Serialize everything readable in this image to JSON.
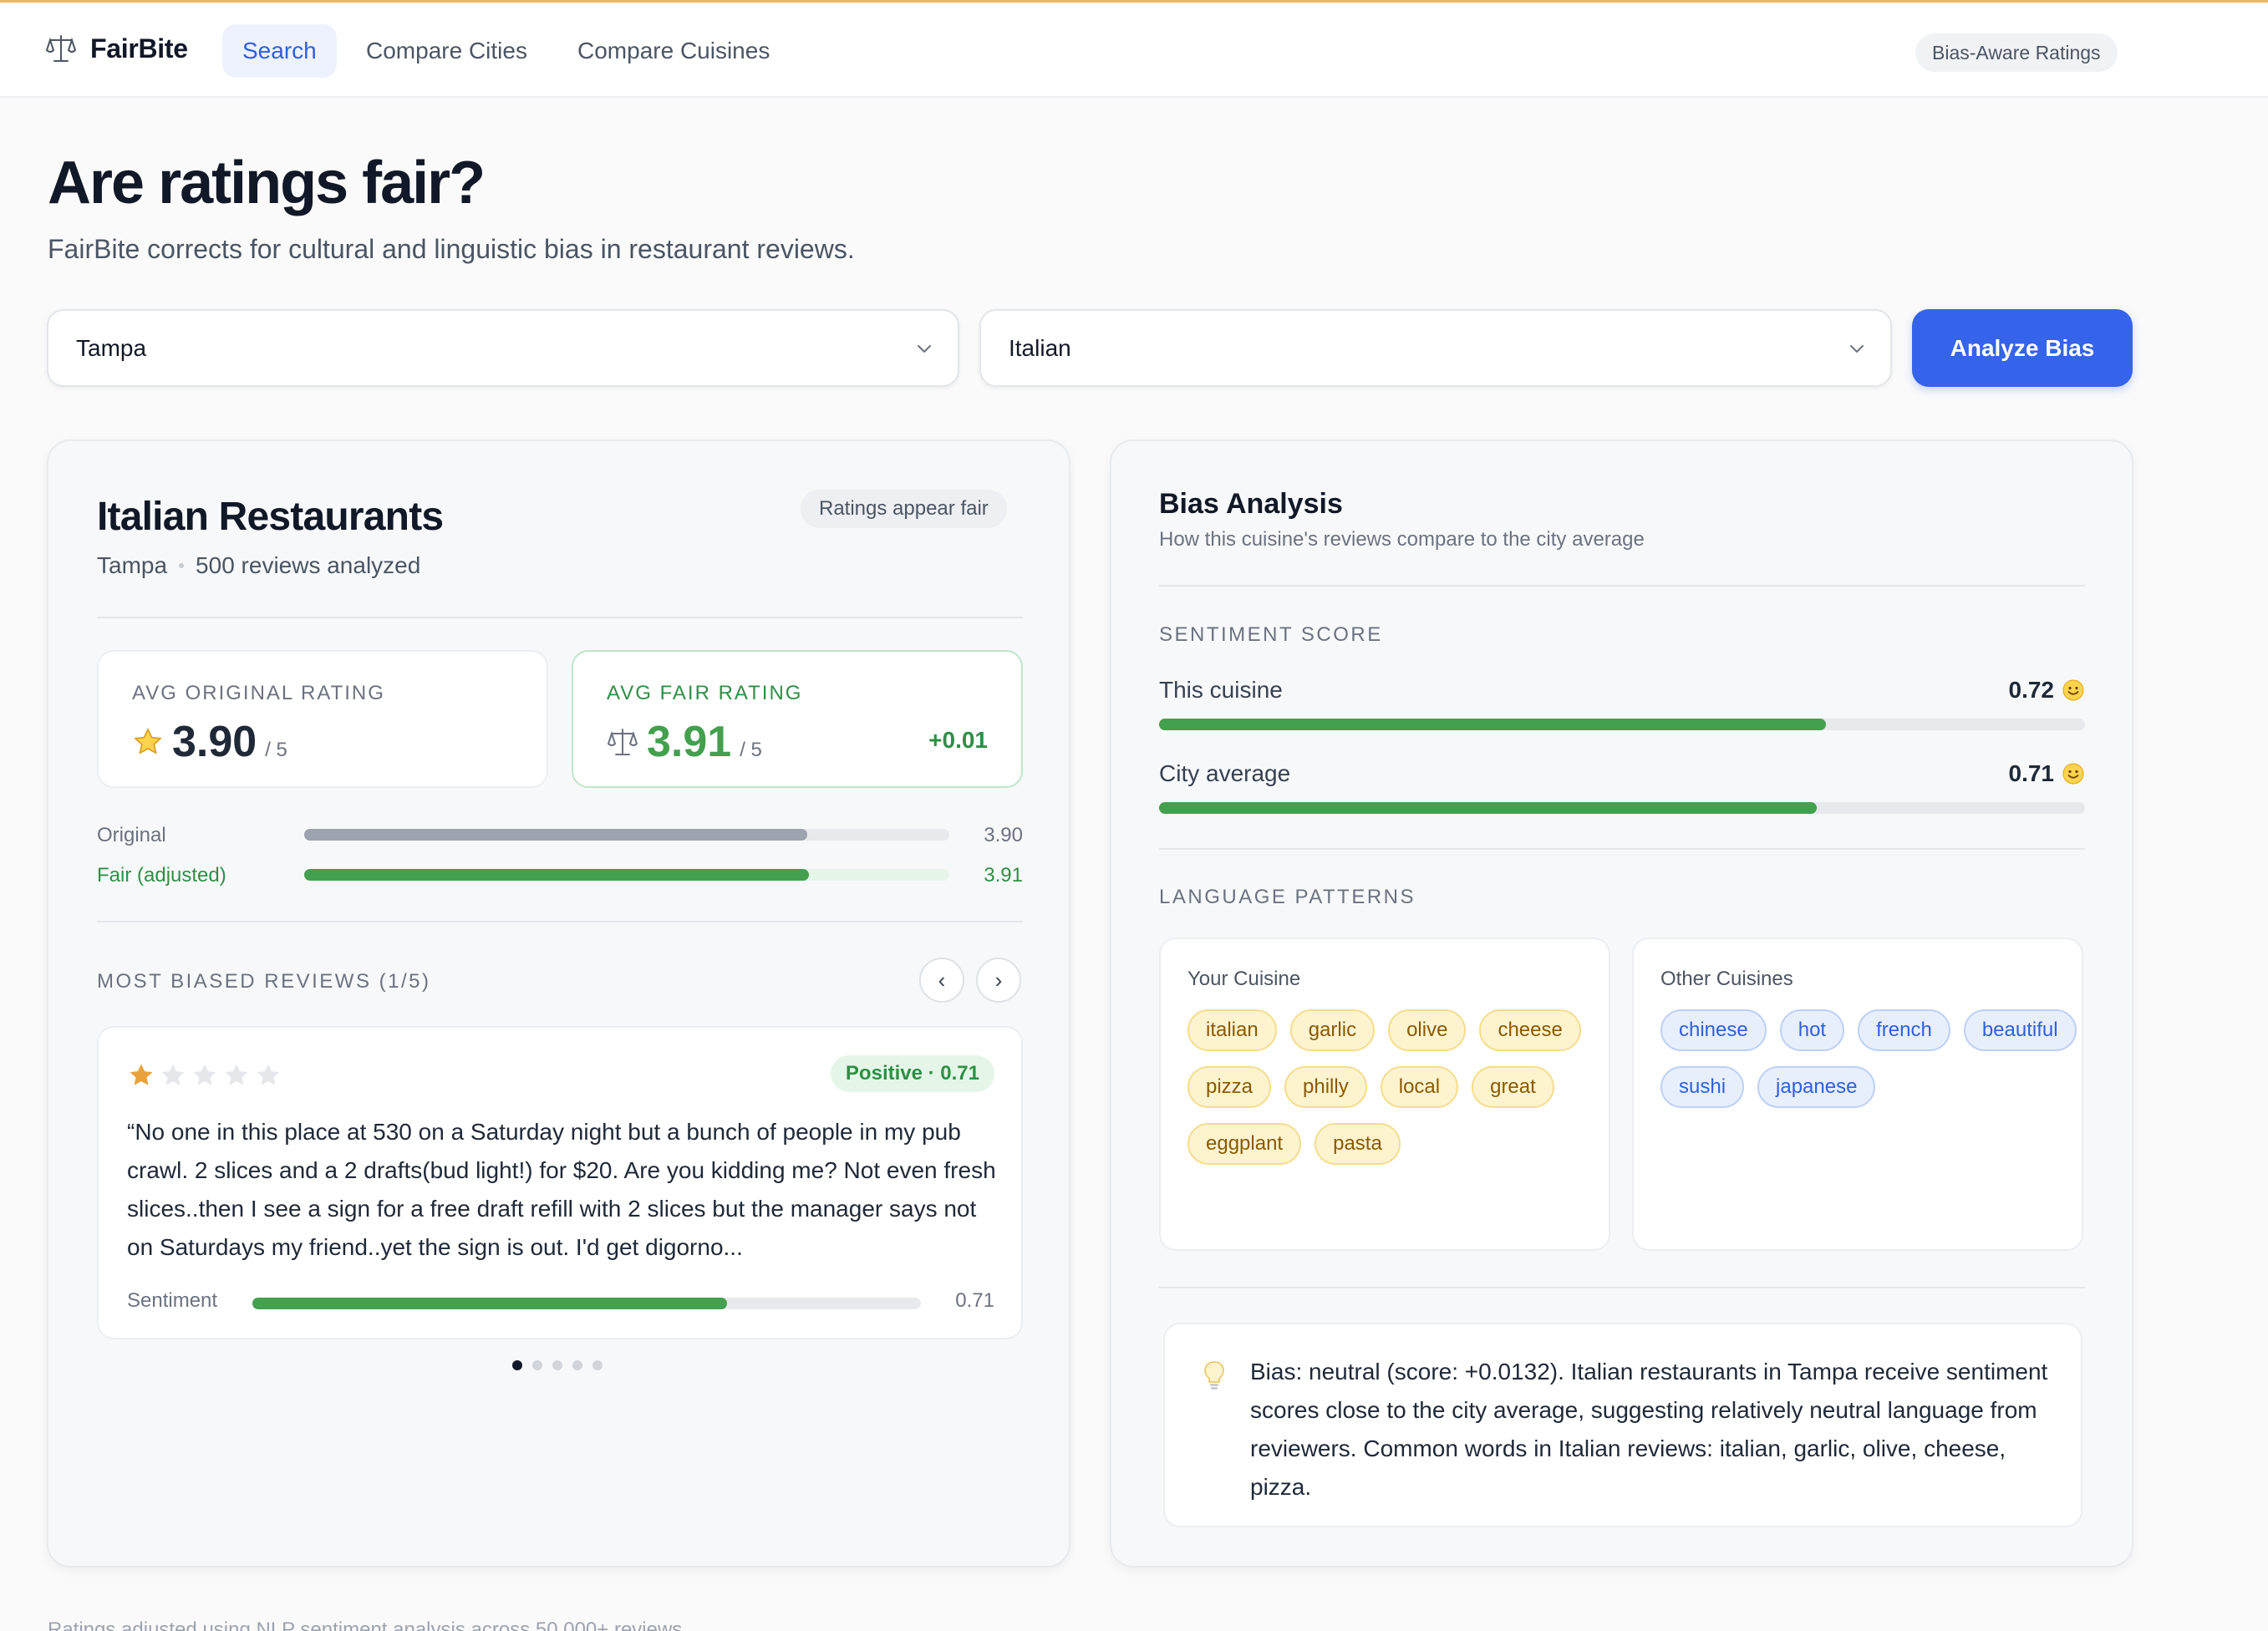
{
  "nav": {
    "brand": "FairBite",
    "tabs": [
      {
        "label": "Search"
      },
      {
        "label": "Compare Cities"
      },
      {
        "label": "Compare Cuisines"
      }
    ],
    "badge": "Bias-Aware Ratings"
  },
  "hero": {
    "title": "Are ratings fair?",
    "subtitle": "FairBite corrects for cultural and linguistic bias in restaurant reviews."
  },
  "controls": {
    "city": "Tampa",
    "cuisine": "Italian",
    "analyze_label": "Analyze Bias"
  },
  "summary": {
    "title": "Italian Restaurants",
    "city": "Tampa",
    "reviews": "500 reviews analyzed",
    "fairness_chip": "Ratings appear fair",
    "original": {
      "label": "AVG ORIGINAL RATING",
      "value": "3.90",
      "of": "/ 5"
    },
    "fair": {
      "label": "AVG FAIR RATING",
      "value": "3.91",
      "of": "/ 5",
      "delta": "+0.01"
    },
    "bars": [
      {
        "label": "Original",
        "value": "3.90",
        "fraction": 0.78,
        "color": "#9ca3af",
        "track": "#e7e9ec",
        "label_color": "#6b7280"
      },
      {
        "label": "Fair (adjusted)",
        "value": "3.91",
        "fraction": 0.782,
        "color": "#43a04e",
        "track": "#e6f6e9",
        "label_color": "#2f8f46"
      }
    ],
    "biased_label": "MOST BIASED REVIEWS (1/5)",
    "review": {
      "stars": 1,
      "sentiment_chip": "Positive · 0.71",
      "text": "“No one in this place at 530 on a Saturday night but a bunch of people in my pub crawl. 2 slices and a 2 drafts(bud light!) for $20. Are you kidding me? Not even fresh slices..then I see a sign for a free draft refill with 2 slices but the manager says not on Saturdays my friend..yet the sign is out. I'd get digorno...",
      "sentiment_label": "Sentiment",
      "sentiment_value": "0.71",
      "sentiment_fraction": 0.71
    },
    "pager": {
      "count": 5,
      "active": 0
    }
  },
  "analysis": {
    "title": "Bias Analysis",
    "subtitle": "How this cuisine's reviews compare to the city average",
    "sentiment_label": "SENTIMENT SCORE",
    "metrics": [
      {
        "label": "This cuisine",
        "value": "0.72",
        "fraction": 0.72
      },
      {
        "label": "City average",
        "value": "0.71",
        "fraction": 0.71
      }
    ],
    "language_label": "LANGUAGE PATTERNS",
    "your_cuisine": {
      "title": "Your Cuisine",
      "tags": [
        "italian",
        "garlic",
        "olive",
        "cheese",
        "pizza",
        "philly",
        "local",
        "great",
        "eggplant",
        "pasta"
      ]
    },
    "other_cuisines": {
      "title": "Other Cuisines",
      "tags": [
        "chinese",
        "hot",
        "french",
        "beautiful",
        "sushi",
        "japanese"
      ]
    },
    "insight": "Bias: neutral (score: +0.0132). Italian restaurants in Tampa receive sentiment scores close to the city average, suggesting relatively neutral language from reviewers. Common words in Italian reviews: italian, garlic, olive, cheese, pizza."
  },
  "footer": "Ratings adjusted using NLP sentiment analysis across 50,000+ reviews",
  "colors": {
    "accent": "#3563e9",
    "positive": "#43a04e",
    "warm_tag": "#fdf3cf",
    "cool_tag": "#e7effd"
  }
}
